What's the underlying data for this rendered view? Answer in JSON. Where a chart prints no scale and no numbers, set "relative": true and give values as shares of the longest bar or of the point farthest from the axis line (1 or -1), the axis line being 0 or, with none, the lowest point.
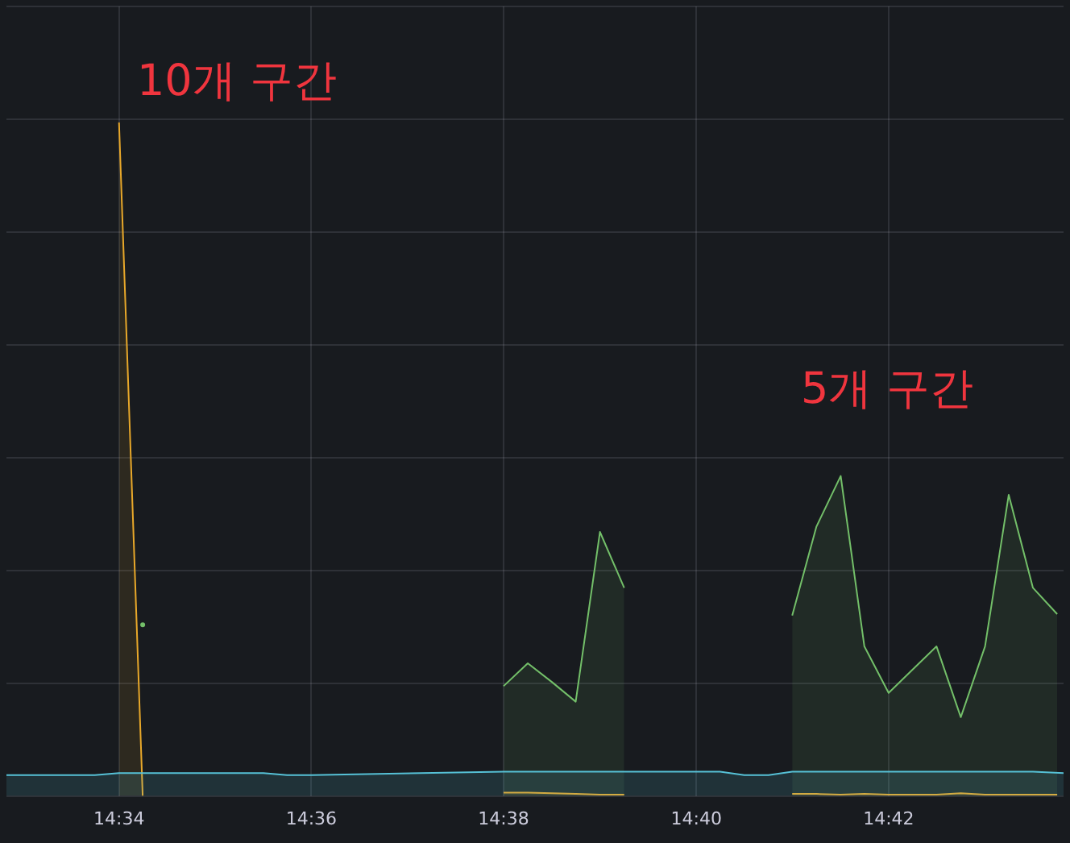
{
  "chart_data": {
    "type": "area",
    "relative": true,
    "grid": true,
    "xlim": [
      14.5472,
      14.7303
    ],
    "xticks": [
      {
        "value": 14.5667,
        "label": "14:34"
      },
      {
        "value": 14.6,
        "label": "14:36"
      },
      {
        "value": 14.6333,
        "label": "14:38"
      },
      {
        "value": 14.6667,
        "label": "14:40"
      },
      {
        "value": 14.7,
        "label": "14:42"
      }
    ],
    "annotations": [
      "10개 구간",
      "5개 구간"
    ],
    "series": [
      {
        "color": "#56c1d6",
        "x": [
          14.5472,
          14.5625,
          14.5667,
          14.5917,
          14.5958,
          14.6,
          14.6333,
          14.6708,
          14.675,
          14.6792,
          14.6833,
          14.725,
          14.7303
        ],
        "values": [
          0.031,
          0.031,
          0.034,
          0.034,
          0.031,
          0.031,
          0.036,
          0.036,
          0.031,
          0.031,
          0.036,
          0.036,
          0.034
        ]
      },
      {
        "color": "#e8a82a",
        "x": [
          14.5667,
          14.5708,
          14.6,
          14.6333,
          14.6375,
          14.6417,
          14.6458,
          14.65,
          14.6542,
          14.6667,
          14.6833,
          14.6875,
          14.6917,
          14.6958,
          14.7,
          14.7042,
          14.7083,
          14.7125,
          14.7167,
          14.7208,
          14.725,
          14.7292
        ],
        "values": [
          1,
          0,
          null,
          0.005,
          0.005,
          0.004,
          0.003,
          0.002,
          0.002,
          null,
          0.003,
          0.003,
          0.002,
          0.003,
          0.002,
          0.002,
          0.002,
          0.004,
          0.002,
          0.002,
          0.002,
          0.002
        ]
      },
      {
        "type": "scatter",
        "color": "#73bf69",
        "x": [
          14.5708
        ],
        "values": [
          0.254
        ]
      },
      {
        "color": "#73bf69",
        "x": [
          14.6333,
          14.6375,
          14.6417,
          14.6458,
          14.65,
          14.6542,
          14.6667,
          14.6833,
          14.6875,
          14.6917,
          14.6958,
          14.7,
          14.7042,
          14.7083,
          14.7125,
          14.7167,
          14.7208,
          14.725,
          14.7292
        ],
        "values": [
          0.163,
          0.197,
          0.169,
          0.14,
          0.392,
          0.309,
          null,
          0.268,
          0.4,
          0.475,
          0.222,
          0.153,
          0.188,
          0.222,
          0.117,
          0.222,
          0.447,
          0.309,
          0.27
        ]
      }
    ]
  }
}
